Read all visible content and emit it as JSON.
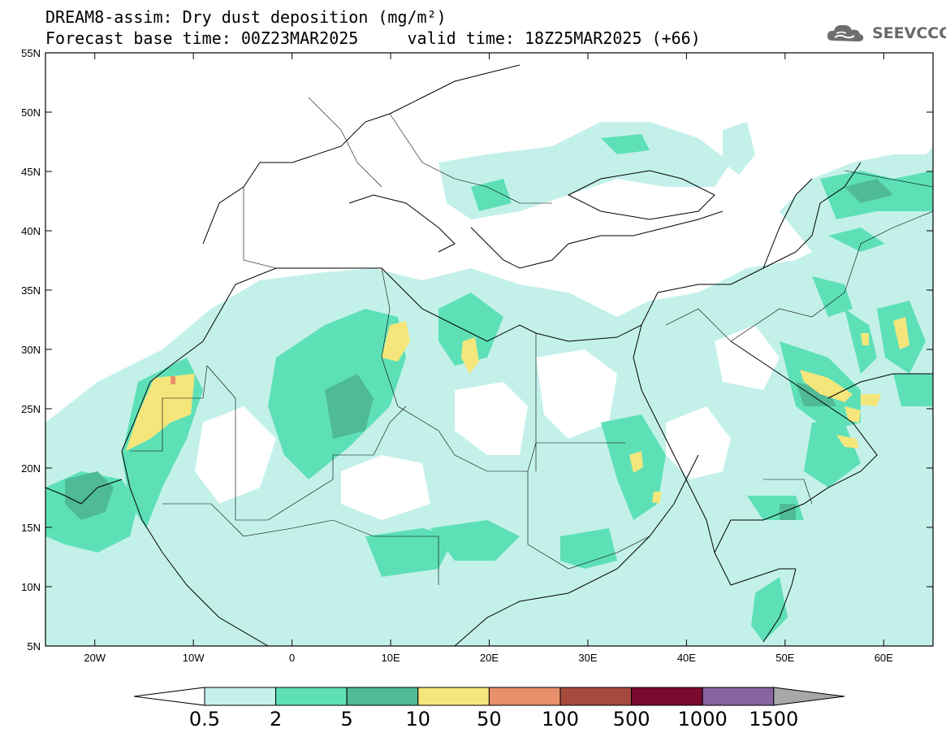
{
  "title_line1": "DREAM8-assim: Dry dust deposition (mg/m²)",
  "title_line2": "Forecast base time: 00Z23MAR2025     valid time: 18Z25MAR2025 (+66)",
  "logo_text": "SEEVCCC",
  "map": {
    "lon_range": [
      -25,
      65
    ],
    "lat_range": [
      5,
      55
    ],
    "lon_ticks": [
      {
        "value": -20,
        "label": "20W"
      },
      {
        "value": -10,
        "label": "10W"
      },
      {
        "value": 0,
        "label": "0"
      },
      {
        "value": 10,
        "label": "10E"
      },
      {
        "value": 20,
        "label": "20E"
      },
      {
        "value": 30,
        "label": "30E"
      },
      {
        "value": 40,
        "label": "40E"
      },
      {
        "value": 50,
        "label": "50E"
      },
      {
        "value": 60,
        "label": "60E"
      }
    ],
    "lat_ticks": [
      {
        "value": 55,
        "label": "55N"
      },
      {
        "value": 50,
        "label": "50N"
      },
      {
        "value": 45,
        "label": "45N"
      },
      {
        "value": 40,
        "label": "40N"
      },
      {
        "value": 35,
        "label": "35N"
      },
      {
        "value": 30,
        "label": "30N"
      },
      {
        "value": 25,
        "label": "25N"
      },
      {
        "value": 20,
        "label": "20N"
      },
      {
        "value": 15,
        "label": "15N"
      },
      {
        "value": 10,
        "label": "10N"
      },
      {
        "value": 5,
        "label": "5N"
      }
    ]
  },
  "colorbar": {
    "colors": [
      "#c3f1ea",
      "#5ee0b7",
      "#4fba96",
      "#f5e67c",
      "#e8906a",
      "#a64a3e",
      "#7a0a2e",
      "#8a64a0",
      "#a8a8a8"
    ],
    "labels": [
      "0.5",
      "2",
      "5",
      "10",
      "50",
      "100",
      "500",
      "1000",
      "1500"
    ]
  }
}
